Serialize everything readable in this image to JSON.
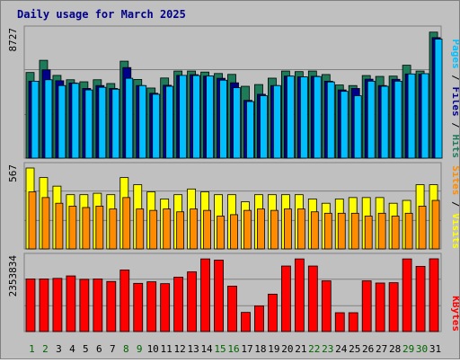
{
  "chart_data": {
    "type": "bar",
    "title": "Daily usage for March 2025",
    "categories": [
      "1",
      "2",
      "3",
      "4",
      "5",
      "6",
      "7",
      "8",
      "9",
      "10",
      "11",
      "12",
      "13",
      "14",
      "15",
      "16",
      "17",
      "18",
      "19",
      "20",
      "21",
      "22",
      "23",
      "24",
      "25",
      "26",
      "27",
      "28",
      "29",
      "30",
      "31"
    ],
    "weekend_days": [
      "1",
      "2",
      "8",
      "9",
      "15",
      "16",
      "22",
      "23",
      "29",
      "30"
    ],
    "panels": {
      "hits": {
        "ylabel": [
          "Pages",
          "Files",
          "Hits"
        ],
        "peak_label": "8727",
        "ylim": [
          0,
          8727
        ],
        "series": [
          {
            "name": "Hits",
            "color": "#1e7b5a",
            "values": [
              5900,
              6740,
              5700,
              5400,
              5260,
              5400,
              5140,
              6680,
              5420,
              4830,
              5520,
              6000,
              6000,
              5930,
              5830,
              5770,
              4950,
              5070,
              5510,
              6000,
              5960,
              6000,
              5760,
              5040,
              5000,
              5690,
              5630,
              5650,
              6400,
              6000,
              8680
            ]
          },
          {
            "name": "Files",
            "color": "#00008b",
            "values": [
              5300,
              6080,
              5330,
              5180,
              4800,
              5000,
              4800,
              6240,
              5000,
              4470,
              5020,
              5700,
              5750,
              5650,
              5500,
              5190,
              3980,
              4400,
              5000,
              5650,
              5600,
              5640,
              5300,
              4700,
              4800,
              5440,
              5000,
              5430,
              5800,
              5780,
              8300
            ]
          },
          {
            "name": "Pages",
            "color": "#00bfff",
            "values": [
              5300,
              5400,
              5000,
              5150,
              4700,
              4880,
              4750,
              5500,
              5000,
              4400,
              4950,
              5700,
              5690,
              5660,
              5370,
              4850,
              3900,
              4300,
              5000,
              5650,
              5600,
              5620,
              5250,
              4600,
              4300,
              5300,
              4950,
              5300,
              5800,
              5820,
              8200
            ]
          }
        ]
      },
      "visits": {
        "ylabel": [
          "Sites",
          "Visits"
        ],
        "peak_label": "567",
        "ylim": [
          0,
          567
        ],
        "series": [
          {
            "name": "Visits",
            "color": "#ffff00",
            "values": [
              567,
              500,
              440,
              380,
              380,
              390,
              380,
              500,
              450,
              400,
              350,
              380,
              420,
              400,
              380,
              380,
              330,
              380,
              380,
              380,
              380,
              350,
              320,
              350,
              360,
              360,
              360,
              320,
              340,
              450,
              450
            ]
          },
          {
            "name": "Sites",
            "color": "#ff8c00",
            "values": [
              400,
              360,
              320,
              300,
              290,
              300,
              280,
              360,
              280,
              270,
              280,
              260,
              280,
              270,
              230,
              240,
              270,
              280,
              270,
              280,
              280,
              260,
              250,
              250,
              250,
              230,
              250,
              230,
              250,
              300,
              340
            ]
          }
        ]
      },
      "kbytes": {
        "ylabel": [
          "KBytes"
        ],
        "peak_label": "2353834",
        "ylim": [
          0,
          2353834
        ],
        "series": [
          {
            "name": "KBytes",
            "color": "#ff0000",
            "values": [
              1700000,
              1700000,
              1720000,
              1800000,
              1690000,
              1700000,
              1620000,
              1990000,
              1560000,
              1610000,
              1550000,
              1760000,
              1930000,
              2350000,
              2310000,
              1470000,
              620000,
              830000,
              1210000,
              2120000,
              2350000,
              2120000,
              1640000,
              610000,
              610000,
              1640000,
              1570000,
              1580000,
              2350000,
              2110000,
              2353834
            ]
          }
        ]
      }
    },
    "colors": {
      "background": "#c0c0c0",
      "weekday_label": "#000000",
      "weekend_label": "#006400",
      "gridline": "#808080"
    }
  }
}
